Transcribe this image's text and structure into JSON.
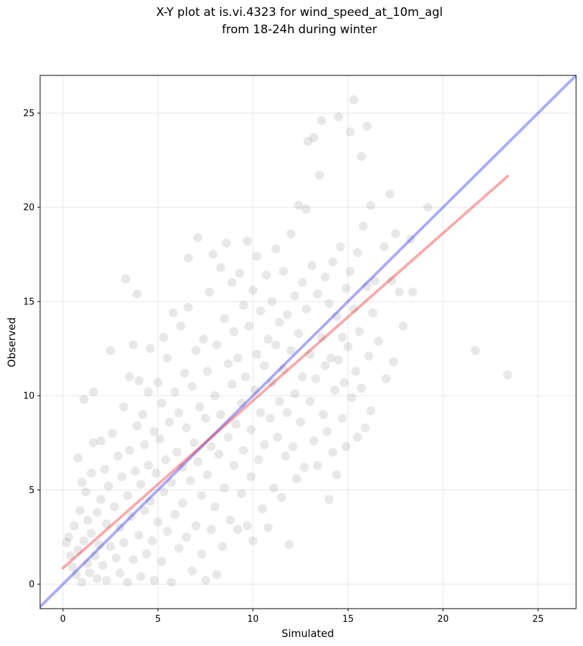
{
  "chart_data": {
    "type": "scatter",
    "title": "X-Y plot at is.vi.4323 for wind_speed_at_10m_agl",
    "subtitle": "from 18-24h during winter",
    "xlabel": "Simulated",
    "ylabel": "Observed",
    "xlim": [
      -1.2,
      27.0
    ],
    "ylim": [
      -1.3,
      27.0
    ],
    "x_ticks": [
      0,
      5,
      10,
      15,
      20,
      25
    ],
    "y_ticks": [
      0,
      5,
      10,
      15,
      20,
      25
    ],
    "x_tick_labels": [
      "0",
      "5",
      "10",
      "15",
      "20",
      "25"
    ],
    "y_tick_labels": [
      "0",
      "5",
      "10",
      "15",
      "20",
      "25"
    ],
    "grid": true,
    "colors": {
      "points": "#000000",
      "identity_line": "#0000ee",
      "fit_line": "#ee0000",
      "grid": "#e6e6e6"
    },
    "lines": [
      {
        "kind": "identity",
        "x": [
          -1.2,
          27.0
        ],
        "y": [
          -1.2,
          27.0
        ]
      },
      {
        "kind": "fit",
        "x": [
          0,
          23.4
        ],
        "y": [
          0.85,
          21.65
        ]
      }
    ],
    "points": [
      [
        0.2,
        2.2
      ],
      [
        0.3,
        2.5
      ],
      [
        0.4,
        1.5
      ],
      [
        0.5,
        0.9
      ],
      [
        0.6,
        3.1
      ],
      [
        0.7,
        0.5
      ],
      [
        0.8,
        6.7
      ],
      [
        0.8,
        1.8
      ],
      [
        0.9,
        3.9
      ],
      [
        1.0,
        5.4
      ],
      [
        1.0,
        0.1
      ],
      [
        1.1,
        2.3
      ],
      [
        1.1,
        9.8
      ],
      [
        1.2,
        4.9
      ],
      [
        1.3,
        1.1
      ],
      [
        1.3,
        3.4
      ],
      [
        1.4,
        0.6
      ],
      [
        1.5,
        2.7
      ],
      [
        1.5,
        5.9
      ],
      [
        1.6,
        7.5
      ],
      [
        1.6,
        10.2
      ],
      [
        1.7,
        1.5
      ],
      [
        1.8,
        3.8
      ],
      [
        1.8,
        0.3
      ],
      [
        1.9,
        2.1
      ],
      [
        2.0,
        4.5
      ],
      [
        2.0,
        7.6
      ],
      [
        2.1,
        1.0
      ],
      [
        2.2,
        6.1
      ],
      [
        2.3,
        3.2
      ],
      [
        2.3,
        0.2
      ],
      [
        2.4,
        5.2
      ],
      [
        2.5,
        2.0
      ],
      [
        2.5,
        12.4
      ],
      [
        2.6,
        8.0
      ],
      [
        2.7,
        4.1
      ],
      [
        2.8,
        1.4
      ],
      [
        2.9,
        6.8
      ],
      [
        3.0,
        3.0
      ],
      [
        3.0,
        0.6
      ],
      [
        3.1,
        5.7
      ],
      [
        3.2,
        9.4
      ],
      [
        3.2,
        2.2
      ],
      [
        3.3,
        16.2
      ],
      [
        3.4,
        4.7
      ],
      [
        3.4,
        0.1
      ],
      [
        3.5,
        7.1
      ],
      [
        3.5,
        11.0
      ],
      [
        3.6,
        3.6
      ],
      [
        3.7,
        1.3
      ],
      [
        3.7,
        12.7
      ],
      [
        3.8,
        6.0
      ],
      [
        3.9,
        8.4
      ],
      [
        3.9,
        15.4
      ],
      [
        4.0,
        2.6
      ],
      [
        4.0,
        10.8
      ],
      [
        4.1,
        5.3
      ],
      [
        4.1,
        0.4
      ],
      [
        4.2,
        9.0
      ],
      [
        4.3,
        3.9
      ],
      [
        4.3,
        7.4
      ],
      [
        4.4,
        1.6
      ],
      [
        4.5,
        10.2
      ],
      [
        4.5,
        6.3
      ],
      [
        4.6,
        4.4
      ],
      [
        4.6,
        12.5
      ],
      [
        4.7,
        2.3
      ],
      [
        4.8,
        8.1
      ],
      [
        4.8,
        0.2
      ],
      [
        4.9,
        5.9
      ],
      [
        5.0,
        10.7
      ],
      [
        5.0,
        3.3
      ],
      [
        5.1,
        7.7
      ],
      [
        5.2,
        1.2
      ],
      [
        5.2,
        9.6
      ],
      [
        5.3,
        4.9
      ],
      [
        5.3,
        13.1
      ],
      [
        5.4,
        6.6
      ],
      [
        5.5,
        2.8
      ],
      [
        5.5,
        12.0
      ],
      [
        5.6,
        8.6
      ],
      [
        5.7,
        0.1
      ],
      [
        5.7,
        5.4
      ],
      [
        5.8,
        14.4
      ],
      [
        5.9,
        3.7
      ],
      [
        5.9,
        10.2
      ],
      [
        6.0,
        7.0
      ],
      [
        6.1,
        1.9
      ],
      [
        6.1,
        9.1
      ],
      [
        6.2,
        13.7
      ],
      [
        6.3,
        4.3
      ],
      [
        6.3,
        6.2
      ],
      [
        6.4,
        11.2
      ],
      [
        6.5,
        2.5
      ],
      [
        6.5,
        8.3
      ],
      [
        6.6,
        14.7
      ],
      [
        6.6,
        17.3
      ],
      [
        6.7,
        5.5
      ],
      [
        6.8,
        0.7
      ],
      [
        6.8,
        10.5
      ],
      [
        6.9,
        7.5
      ],
      [
        7.0,
        3.1
      ],
      [
        7.0,
        12.4
      ],
      [
        7.1,
        18.4
      ],
      [
        7.1,
        6.5
      ],
      [
        7.2,
        9.4
      ],
      [
        7.3,
        1.6
      ],
      [
        7.3,
        4.7
      ],
      [
        7.4,
        13.0
      ],
      [
        7.5,
        8.8
      ],
      [
        7.5,
        0.2
      ],
      [
        7.6,
        11.3
      ],
      [
        7.6,
        5.8
      ],
      [
        7.7,
        15.5
      ],
      [
        7.8,
        2.9
      ],
      [
        7.8,
        7.3
      ],
      [
        7.9,
        17.5
      ],
      [
        8.0,
        10.0
      ],
      [
        8.0,
        4.1
      ],
      [
        8.1,
        0.5
      ],
      [
        8.1,
        12.7
      ],
      [
        8.2,
        6.9
      ],
      [
        8.3,
        16.8
      ],
      [
        8.3,
        9.0
      ],
      [
        8.4,
        2.0
      ],
      [
        8.5,
        14.1
      ],
      [
        8.5,
        5.1
      ],
      [
        8.6,
        18.1
      ],
      [
        8.7,
        11.7
      ],
      [
        8.7,
        7.8
      ],
      [
        8.8,
        3.4
      ],
      [
        8.9,
        16.0
      ],
      [
        8.9,
        10.6
      ],
      [
        9.0,
        13.4
      ],
      [
        9.0,
        6.3
      ],
      [
        9.1,
        8.5
      ],
      [
        9.2,
        2.9
      ],
      [
        9.2,
        12.0
      ],
      [
        9.3,
        16.5
      ],
      [
        9.4,
        9.6
      ],
      [
        9.4,
        4.8
      ],
      [
        9.5,
        14.8
      ],
      [
        9.5,
        7.1
      ],
      [
        9.6,
        11.0
      ],
      [
        9.7,
        18.2
      ],
      [
        9.7,
        3.1
      ],
      [
        9.8,
        13.7
      ],
      [
        9.9,
        8.2
      ],
      [
        9.9,
        5.7
      ],
      [
        10.0,
        15.6
      ],
      [
        10.0,
        2.3
      ],
      [
        10.1,
        10.3
      ],
      [
        10.2,
        17.4
      ],
      [
        10.2,
        12.2
      ],
      [
        10.3,
        6.6
      ],
      [
        10.4,
        9.1
      ],
      [
        10.4,
        14.5
      ],
      [
        10.5,
        4.0
      ],
      [
        10.6,
        11.6
      ],
      [
        10.6,
        7.4
      ],
      [
        10.7,
        16.4
      ],
      [
        10.8,
        13.0
      ],
      [
        10.8,
        3.0
      ],
      [
        10.9,
        8.8
      ],
      [
        11.0,
        10.7
      ],
      [
        11.0,
        15.0
      ],
      [
        11.1,
        5.1
      ],
      [
        11.2,
        12.7
      ],
      [
        11.2,
        17.8
      ],
      [
        11.3,
        7.8
      ],
      [
        11.4,
        9.7
      ],
      [
        11.4,
        13.9
      ],
      [
        11.5,
        4.6
      ],
      [
        11.6,
        11.4
      ],
      [
        11.6,
        16.6
      ],
      [
        11.7,
        6.8
      ],
      [
        11.8,
        14.3
      ],
      [
        11.8,
        9.1
      ],
      [
        11.9,
        2.1
      ],
      [
        12.0,
        12.4
      ],
      [
        12.0,
        18.6
      ],
      [
        12.1,
        7.3
      ],
      [
        12.2,
        15.3
      ],
      [
        12.2,
        10.1
      ],
      [
        12.3,
        5.6
      ],
      [
        12.4,
        20.1
      ],
      [
        12.4,
        13.3
      ],
      [
        12.5,
        8.6
      ],
      [
        12.6,
        16.0
      ],
      [
        12.6,
        11.0
      ],
      [
        12.7,
        6.2
      ],
      [
        12.8,
        19.9
      ],
      [
        12.8,
        14.6
      ],
      [
        12.9,
        23.5
      ],
      [
        13.0,
        9.7
      ],
      [
        13.0,
        12.2
      ],
      [
        13.1,
        16.9
      ],
      [
        13.2,
        7.6
      ],
      [
        13.2,
        23.7
      ],
      [
        13.3,
        10.9
      ],
      [
        13.4,
        15.4
      ],
      [
        13.4,
        6.3
      ],
      [
        13.5,
        21.7
      ],
      [
        13.6,
        24.6
      ],
      [
        13.6,
        13.1
      ],
      [
        13.7,
        9.0
      ],
      [
        13.8,
        16.3
      ],
      [
        13.8,
        11.6
      ],
      [
        13.9,
        8.1
      ],
      [
        14.0,
        14.9
      ],
      [
        14.0,
        4.5
      ],
      [
        14.1,
        12.0
      ],
      [
        14.2,
        17.1
      ],
      [
        14.2,
        7.0
      ],
      [
        14.3,
        10.3
      ],
      [
        14.4,
        14.2
      ],
      [
        14.4,
        5.8
      ],
      [
        14.5,
        24.8
      ],
      [
        14.5,
        11.9
      ],
      [
        14.6,
        17.9
      ],
      [
        14.7,
        8.8
      ],
      [
        14.7,
        13.1
      ],
      [
        14.8,
        10.7
      ],
      [
        14.9,
        15.7
      ],
      [
        14.9,
        7.3
      ],
      [
        15.0,
        12.6
      ],
      [
        15.1,
        24.0
      ],
      [
        15.1,
        16.6
      ],
      [
        15.2,
        9.9
      ],
      [
        15.3,
        25.7
      ],
      [
        15.3,
        14.6
      ],
      [
        15.4,
        11.3
      ],
      [
        15.5,
        17.6
      ],
      [
        15.5,
        7.8
      ],
      [
        15.6,
        13.4
      ],
      [
        15.7,
        22.7
      ],
      [
        15.7,
        10.4
      ],
      [
        15.8,
        19.0
      ],
      [
        15.9,
        8.3
      ],
      [
        16.0,
        24.3
      ],
      [
        16.0,
        15.8
      ],
      [
        16.1,
        12.1
      ],
      [
        16.2,
        20.1
      ],
      [
        16.2,
        9.2
      ],
      [
        16.3,
        14.4
      ],
      [
        16.4,
        16.1
      ],
      [
        16.6,
        12.9
      ],
      [
        16.9,
        17.9
      ],
      [
        17.0,
        10.9
      ],
      [
        17.2,
        20.7
      ],
      [
        17.3,
        16.1
      ],
      [
        17.4,
        11.8
      ],
      [
        17.5,
        18.6
      ],
      [
        17.7,
        15.5
      ],
      [
        17.9,
        13.7
      ],
      [
        18.3,
        18.3
      ],
      [
        18.4,
        15.5
      ],
      [
        19.2,
        20.0
      ],
      [
        21.7,
        12.4
      ],
      [
        23.4,
        11.1
      ]
    ]
  }
}
